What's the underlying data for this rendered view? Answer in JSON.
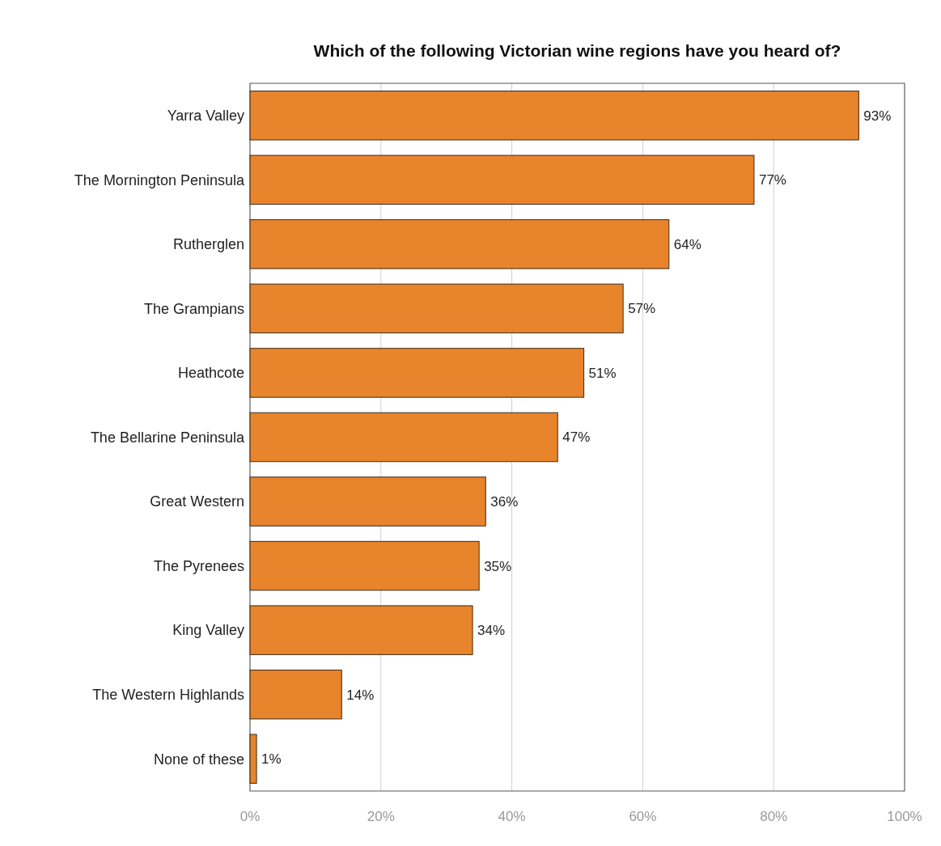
{
  "chart_data": {
    "type": "bar",
    "orientation": "horizontal",
    "title": "Which of the following Victorian wine regions have you heard of?",
    "categories": [
      "Yarra Valley",
      "The Mornington Peninsula",
      "Rutherglen",
      "The Grampians",
      "Heathcote",
      "The Bellarine Peninsula",
      "Great Western",
      "The Pyrenees",
      "King Valley",
      "The Western Highlands",
      "None of these"
    ],
    "values": [
      93,
      77,
      64,
      57,
      51,
      47,
      36,
      35,
      34,
      14,
      1
    ],
    "value_labels": [
      "93%",
      "77%",
      "64%",
      "57%",
      "51%",
      "47%",
      "36%",
      "35%",
      "34%",
      "14%",
      "1%"
    ],
    "color": "#e8842c",
    "xlim": [
      0,
      100
    ],
    "xticks": [
      {
        "value": 0,
        "label": "0%"
      },
      {
        "value": 20,
        "label": "20%"
      },
      {
        "value": 40,
        "label": "40%"
      },
      {
        "value": 60,
        "label": "60%"
      },
      {
        "value": 80,
        "label": "80%"
      },
      {
        "value": 100,
        "label": "100%"
      }
    ],
    "grid": "x"
  }
}
